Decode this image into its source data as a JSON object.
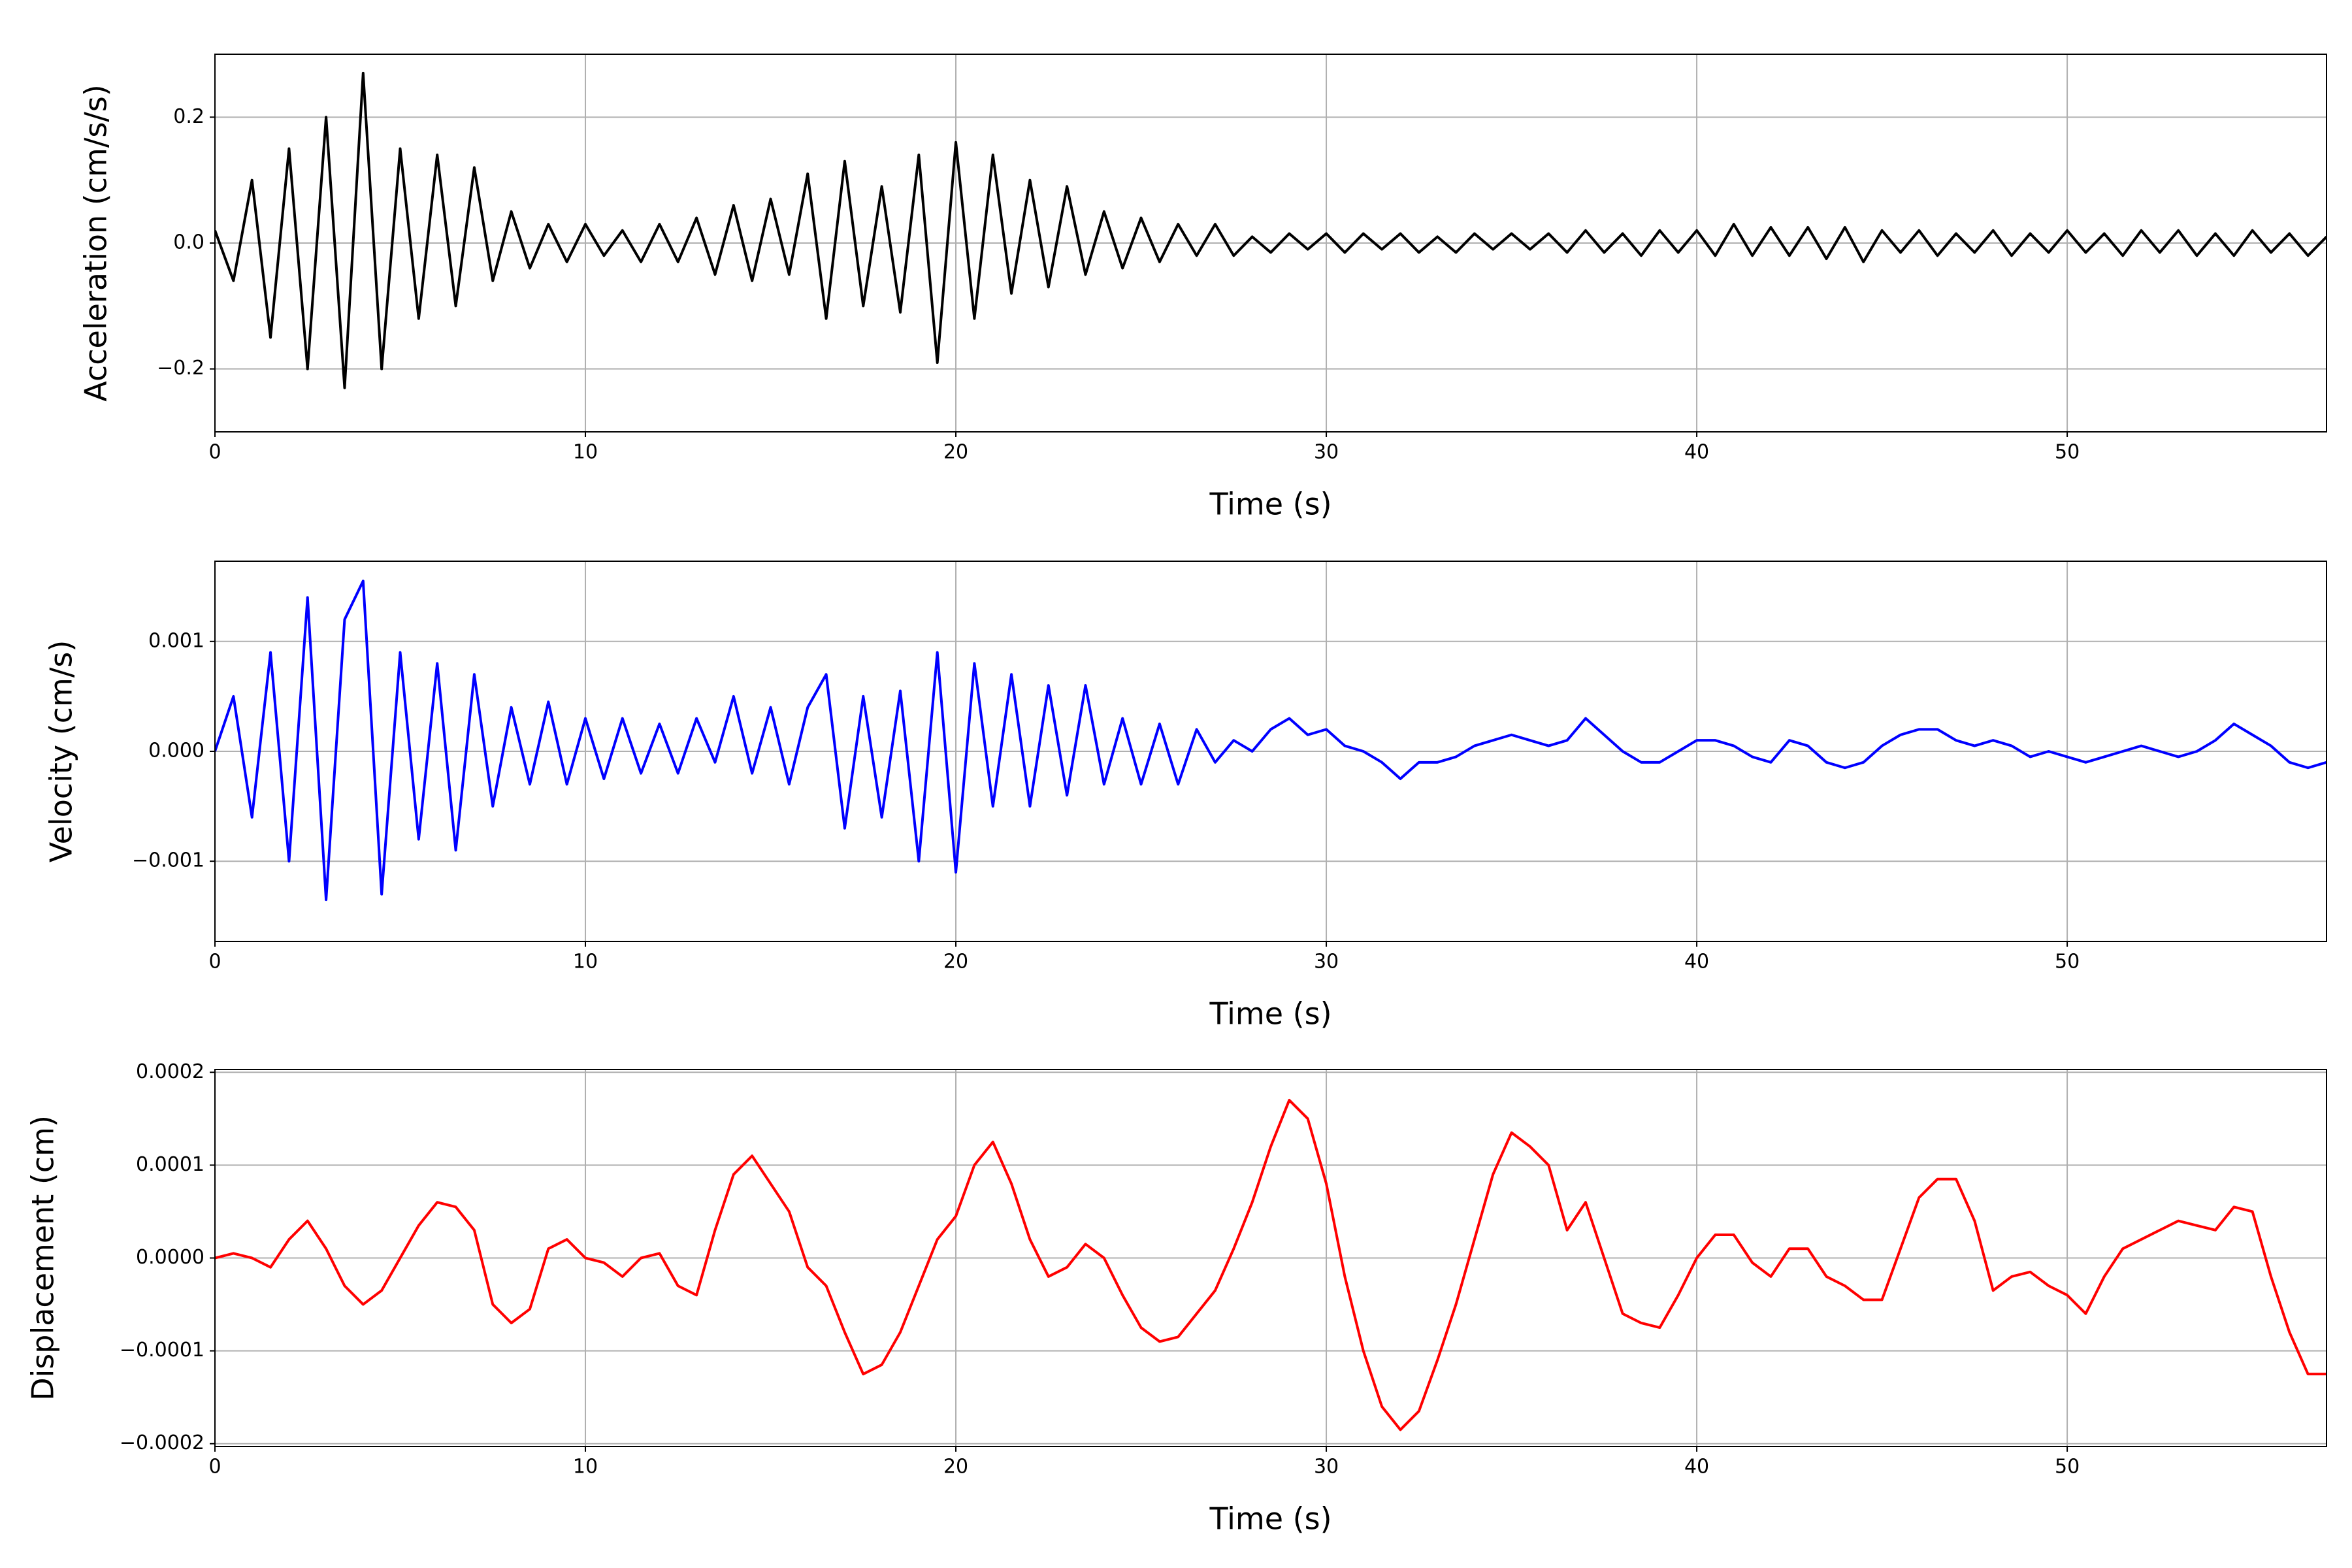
{
  "chart_data": [
    {
      "type": "line",
      "xlabel": "Time (s)",
      "ylabel": "Acceleration (cm/s/s)",
      "color": "#000000",
      "grid": true,
      "xlim": [
        0,
        57
      ],
      "xticks": [
        0,
        10,
        20,
        30,
        40,
        50
      ],
      "ylim": [
        -0.3,
        0.3
      ],
      "yticks": [
        {
          "value": -0.2,
          "label": "−0.2"
        },
        {
          "value": 0,
          "label": "0.0"
        },
        0.2
      ],
      "x": [
        0,
        0.5,
        1,
        1.5,
        2,
        2.5,
        3,
        3.5,
        4,
        4.5,
        5,
        5.5,
        6,
        6.5,
        7,
        7.5,
        8,
        8.5,
        9,
        9.5,
        10,
        10.5,
        11,
        11.5,
        12,
        12.5,
        13,
        13.5,
        14,
        14.5,
        15,
        15.5,
        16,
        16.5,
        17,
        17.5,
        18,
        18.5,
        19,
        19.5,
        20,
        20.5,
        21,
        21.5,
        22,
        22.5,
        23,
        23.5,
        24,
        24.5,
        25,
        25.5,
        26,
        26.5,
        27,
        27.5,
        28,
        28.5,
        29,
        29.5,
        30,
        30.5,
        31,
        31.5,
        32,
        32.5,
        33,
        33.5,
        34,
        34.5,
        35,
        35.5,
        36,
        36.5,
        37,
        37.5,
        38,
        38.5,
        39,
        39.5,
        40,
        40.5,
        41,
        41.5,
        42,
        42.5,
        43,
        43.5,
        44,
        44.5,
        45,
        45.5,
        46,
        46.5,
        47,
        47.5,
        48,
        48.5,
        49,
        49.5,
        50,
        50.5,
        51,
        51.5,
        52,
        52.5,
        53,
        53.5,
        54,
        54.5,
        55,
        55.5,
        56,
        56.5,
        57
      ],
      "values": [
        0.02,
        -0.06,
        0.1,
        -0.15,
        0.15,
        -0.2,
        0.2,
        -0.23,
        0.27,
        -0.2,
        0.15,
        -0.12,
        0.14,
        -0.1,
        0.12,
        -0.06,
        0.05,
        -0.04,
        0.03,
        -0.03,
        0.03,
        -0.02,
        0.02,
        -0.03,
        0.03,
        -0.03,
        0.04,
        -0.05,
        0.06,
        -0.06,
        0.07,
        -0.05,
        0.11,
        -0.12,
        0.13,
        -0.1,
        0.09,
        -0.11,
        0.14,
        -0.19,
        0.16,
        -0.12,
        0.14,
        -0.08,
        0.1,
        -0.07,
        0.09,
        -0.05,
        0.05,
        -0.04,
        0.04,
        -0.03,
        0.03,
        -0.02,
        0.03,
        -0.02,
        0.01,
        -0.015,
        0.015,
        -0.01,
        0.015,
        -0.015,
        0.015,
        -0.01,
        0.015,
        -0.015,
        0.01,
        -0.015,
        0.015,
        -0.01,
        0.015,
        -0.01,
        0.015,
        -0.015,
        0.02,
        -0.015,
        0.015,
        -0.02,
        0.02,
        -0.015,
        0.02,
        -0.02,
        0.03,
        -0.02,
        0.025,
        -0.02,
        0.025,
        -0.025,
        0.025,
        -0.03,
        0.02,
        -0.015,
        0.02,
        -0.02,
        0.015,
        -0.015,
        0.02,
        -0.02,
        0.015,
        -0.015,
        0.02,
        -0.015,
        0.015,
        -0.02,
        0.02,
        -0.015,
        0.02,
        -0.02,
        0.015,
        -0.02,
        0.02,
        -0.015,
        0.015,
        -0.02,
        0.01
      ]
    },
    {
      "type": "line",
      "xlabel": "Time (s)",
      "ylabel": "Velocity (cm/s)",
      "color": "#0000ff",
      "grid": true,
      "xlim": [
        0,
        57
      ],
      "xticks": [
        0,
        10,
        20,
        30,
        40,
        50
      ],
      "ylim": [
        -0.00173,
        0.00173
      ],
      "yticks": [
        {
          "value": -0.001,
          "label": "−0.001"
        },
        {
          "value": 0,
          "label": "0.000"
        },
        0.001
      ],
      "x": [
        0,
        0.5,
        1,
        1.5,
        2,
        2.5,
        3,
        3.5,
        4,
        4.5,
        5,
        5.5,
        6,
        6.5,
        7,
        7.5,
        8,
        8.5,
        9,
        9.5,
        10,
        10.5,
        11,
        11.5,
        12,
        12.5,
        13,
        13.5,
        14,
        14.5,
        15,
        15.5,
        16,
        16.5,
        17,
        17.5,
        18,
        18.5,
        19,
        19.5,
        20,
        20.5,
        21,
        21.5,
        22,
        22.5,
        23,
        23.5,
        24,
        24.5,
        25,
        25.5,
        26,
        26.5,
        27,
        27.5,
        28,
        28.5,
        29,
        29.5,
        30,
        30.5,
        31,
        31.5,
        32,
        32.5,
        33,
        33.5,
        34,
        34.5,
        35,
        35.5,
        36,
        36.5,
        37,
        37.5,
        38,
        38.5,
        39,
        39.5,
        40,
        40.5,
        41,
        41.5,
        42,
        42.5,
        43,
        43.5,
        44,
        44.5,
        45,
        45.5,
        46,
        46.5,
        47,
        47.5,
        48,
        48.5,
        49,
        49.5,
        50,
        50.5,
        51,
        51.5,
        52,
        52.5,
        53,
        53.5,
        54,
        54.5,
        55,
        55.5,
        56,
        56.5,
        57
      ],
      "values": [
        0,
        0.0005,
        -0.0006,
        0.0009,
        -0.001,
        0.0014,
        -0.00135,
        0.0012,
        0.00155,
        -0.0013,
        0.0009,
        -0.0008,
        0.0008,
        -0.0009,
        0.0007,
        -0.0005,
        0.0004,
        -0.0003,
        0.00045,
        -0.0003,
        0.0003,
        -0.00025,
        0.0003,
        -0.0002,
        0.00025,
        -0.0002,
        0.0003,
        -0.0001,
        0.0005,
        -0.0002,
        0.0004,
        -0.0003,
        0.0004,
        0.0007,
        -0.0007,
        0.0005,
        -0.0006,
        0.00055,
        -0.001,
        0.0009,
        -0.0011,
        0.0008,
        -0.0005,
        0.0007,
        -0.0005,
        0.0006,
        -0.0004,
        0.0006,
        -0.0003,
        0.0003,
        -0.0003,
        0.00025,
        -0.0003,
        0.0002,
        -0.0001,
        0.0001,
        0,
        0.0002,
        0.0003,
        0.00015,
        0.0002,
        5e-05,
        0,
        -0.0001,
        -0.00025,
        -0.0001,
        -0.0001,
        -5e-05,
        5e-05,
        0.0001,
        0.00015,
        0.0001,
        5e-05,
        0.0001,
        0.0003,
        0.00015,
        0,
        -0.0001,
        -0.0001,
        0,
        0.0001,
        0.0001,
        5e-05,
        -5e-05,
        -0.0001,
        0.0001,
        5e-05,
        -0.0001,
        -0.00015,
        -0.0001,
        5e-05,
        0.00015,
        0.0002,
        0.0002,
        0.0001,
        5e-05,
        0.0001,
        5e-05,
        -5e-05,
        0,
        -5e-05,
        -0.0001,
        -5e-05,
        0,
        5e-05,
        0,
        -5e-05,
        0,
        0.0001,
        0.00025,
        0.00015,
        5e-05,
        -0.0001,
        -0.00015,
        -0.0001
      ]
    },
    {
      "type": "line",
      "xlabel": "Time (s)",
      "ylabel": "Displacement (cm)",
      "color": "#ff0000",
      "grid": true,
      "xlim": [
        0,
        57
      ],
      "xticks": [
        0,
        10,
        20,
        30,
        40,
        50
      ],
      "ylim": [
        -0.000203,
        0.000203
      ],
      "yticks": [
        {
          "value": -0.0002,
          "label": "−0.0002"
        },
        {
          "value": -0.0001,
          "label": "−0.0001"
        },
        {
          "value": 0,
          "label": "0.0000"
        },
        0.0001,
        0.0002
      ],
      "x": [
        0,
        0.5,
        1,
        1.5,
        2,
        2.5,
        3,
        3.5,
        4,
        4.5,
        5,
        5.5,
        6,
        6.5,
        7,
        7.5,
        8,
        8.5,
        9,
        9.5,
        10,
        10.5,
        11,
        11.5,
        12,
        12.5,
        13,
        13.5,
        14,
        14.5,
        15,
        15.5,
        16,
        16.5,
        17,
        17.5,
        18,
        18.5,
        19,
        19.5,
        20,
        20.5,
        21,
        21.5,
        22,
        22.5,
        23,
        23.5,
        24,
        24.5,
        25,
        25.5,
        26,
        26.5,
        27,
        27.5,
        28,
        28.5,
        29,
        29.5,
        30,
        30.5,
        31,
        31.5,
        32,
        32.5,
        33,
        33.5,
        34,
        34.5,
        35,
        35.5,
        36,
        36.5,
        37,
        37.5,
        38,
        38.5,
        39,
        39.5,
        40,
        40.5,
        41,
        41.5,
        42,
        42.5,
        43,
        43.5,
        44,
        44.5,
        45,
        45.5,
        46,
        46.5,
        47,
        47.5,
        48,
        48.5,
        49,
        49.5,
        50,
        50.5,
        51,
        51.5,
        52,
        52.5,
        53,
        53.5,
        54,
        54.5,
        55,
        55.5,
        56,
        56.5,
        57
      ],
      "values": [
        0,
        5e-06,
        0,
        -1e-05,
        2e-05,
        4e-05,
        1e-05,
        -3e-05,
        -5e-05,
        -3.5e-05,
        0,
        3.5e-05,
        6e-05,
        5.5e-05,
        3e-05,
        -5e-05,
        -7e-05,
        -5.5e-05,
        1e-05,
        2e-05,
        0,
        -5e-06,
        -2e-05,
        0,
        5e-06,
        -3e-05,
        -4e-05,
        3e-05,
        9e-05,
        0.00011,
        8e-05,
        5e-05,
        -1e-05,
        -3e-05,
        -8e-05,
        -0.000125,
        -0.000115,
        -8e-05,
        -3e-05,
        2e-05,
        4.5e-05,
        0.0001,
        0.000125,
        8e-05,
        2e-05,
        -2e-05,
        -1e-05,
        1.5e-05,
        0,
        -4e-05,
        -7.5e-05,
        -9e-05,
        -8.5e-05,
        -6e-05,
        -3.5e-05,
        1e-05,
        6e-05,
        0.00012,
        0.00017,
        0.00015,
        8e-05,
        -2e-05,
        -0.0001,
        -0.00016,
        -0.000185,
        -0.000165,
        -0.00011,
        -5e-05,
        2e-05,
        9e-05,
        0.000135,
        0.00012,
        0.0001,
        3e-05,
        6e-05,
        0,
        -6e-05,
        -7e-05,
        -7.5e-05,
        -4e-05,
        0,
        2.5e-05,
        2.5e-05,
        -5e-06,
        -2e-05,
        1e-05,
        1e-05,
        -2e-05,
        -3e-05,
        -4.5e-05,
        -4.5e-05,
        1e-05,
        6.5e-05,
        8.5e-05,
        8.5e-05,
        4e-05,
        -3.5e-05,
        -2e-05,
        -1.5e-05,
        -3e-05,
        -4e-05,
        -6e-05,
        -2e-05,
        1e-05,
        2e-05,
        3e-05,
        4e-05,
        3.5e-05,
        3e-05,
        5.5e-05,
        5e-05,
        -2e-05,
        -8e-05,
        -0.000125,
        -0.000125
      ]
    }
  ]
}
